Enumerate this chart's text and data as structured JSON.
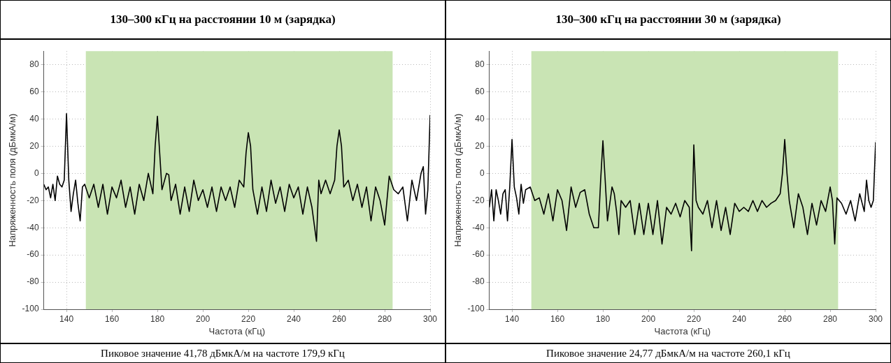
{
  "chart_data": [
    {
      "type": "line",
      "title": "130–300 кГц на расстоянии 10 м (зарядка)",
      "xlabel": "Частота (кГц)",
      "ylabel": "Напряженность поля (дБмкА/м)",
      "annotations": [
        "Пиковое значение 41,78 дБмкА/м на частоте 179,9 кГц"
      ],
      "xlim": [
        130,
        300
      ],
      "xticks": [
        140,
        160,
        180,
        200,
        220,
        240,
        260,
        280,
        300
      ],
      "ylim": [
        -100,
        90
      ],
      "yticks": [
        -100,
        -80,
        -60,
        -40,
        -20,
        0,
        20,
        40,
        60,
        80
      ],
      "grid": true,
      "legend": false,
      "bands": [
        {
          "axis": "x",
          "from": 148.5,
          "to": 283.5,
          "color": "#c9e4b4"
        }
      ],
      "series": [
        {
          "color": "#000000",
          "x": [
            130,
            131,
            132,
            133,
            134,
            135,
            136,
            137,
            138,
            139,
            140,
            141,
            142,
            143,
            144,
            145,
            146,
            147,
            148,
            150,
            152,
            154,
            156,
            158,
            160,
            162,
            164,
            166,
            168,
            170,
            172,
            174,
            176,
            178,
            179,
            180,
            181,
            182,
            184,
            185,
            186,
            188,
            190,
            192,
            194,
            196,
            198,
            200,
            202,
            204,
            206,
            208,
            210,
            212,
            214,
            216,
            218,
            219,
            220,
            221,
            222,
            224,
            226,
            228,
            230,
            232,
            234,
            236,
            238,
            240,
            242,
            244,
            246,
            248,
            250,
            251,
            252,
            254,
            256,
            258,
            259,
            260,
            261,
            262,
            264,
            266,
            268,
            270,
            272,
            274,
            276,
            278,
            280,
            282,
            284,
            286,
            288,
            290,
            292,
            294,
            296,
            297,
            298,
            299,
            300
          ],
          "values": [
            -8,
            -12,
            -10,
            -18,
            -8,
            -20,
            -2,
            -8,
            -10,
            -5,
            44,
            -5,
            -28,
            -15,
            -5,
            -22,
            -35,
            -10,
            -8,
            -18,
            -8,
            -25,
            -8,
            -30,
            -10,
            -18,
            -5,
            -25,
            -10,
            -30,
            -8,
            -20,
            0,
            -15,
            20,
            42,
            15,
            -12,
            0,
            -1,
            -20,
            -8,
            -30,
            -10,
            -28,
            -5,
            -20,
            -12,
            -25,
            -10,
            -28,
            -10,
            -20,
            -10,
            -25,
            -5,
            -10,
            15,
            30,
            20,
            -12,
            -30,
            -10,
            -28,
            -5,
            -22,
            -10,
            -28,
            -8,
            -18,
            -10,
            -30,
            -10,
            -25,
            -50,
            -5,
            -15,
            -5,
            -15,
            -5,
            20,
            32,
            20,
            -10,
            -5,
            -20,
            -8,
            -25,
            -10,
            -35,
            -10,
            -20,
            -38,
            -2,
            -12,
            -15,
            -10,
            -35,
            -5,
            -20,
            0,
            5,
            -30,
            -12,
            43
          ]
        }
      ]
    },
    {
      "type": "line",
      "title": "130–300 кГц на расстоянии 30 м (зарядка)",
      "xlabel": "Частота (кГц)",
      "ylabel": "Напряженность поля (дБмкА/м)",
      "annotations": [
        "Пиковое значение 24,77 дБмкА/м на частоте 260,1 кГц"
      ],
      "xlim": [
        130,
        300
      ],
      "xticks": [
        140,
        160,
        180,
        200,
        220,
        240,
        260,
        280,
        300
      ],
      "ylim": [
        -100,
        90
      ],
      "yticks": [
        -100,
        -80,
        -60,
        -40,
        -20,
        0,
        20,
        40,
        60,
        80
      ],
      "grid": true,
      "legend": false,
      "bands": [
        {
          "axis": "x",
          "from": 148.5,
          "to": 283.5,
          "color": "#c9e4b4"
        }
      ],
      "series": [
        {
          "color": "#000000",
          "x": [
            130,
            131,
            132,
            133,
            134,
            135,
            136,
            137,
            138,
            139,
            140,
            141,
            142,
            143,
            144,
            145,
            146,
            148,
            150,
            152,
            154,
            156,
            158,
            160,
            162,
            164,
            166,
            168,
            170,
            172,
            174,
            176,
            178,
            179,
            180,
            181,
            182,
            184,
            185,
            186,
            187,
            188,
            190,
            192,
            194,
            196,
            198,
            200,
            202,
            204,
            206,
            208,
            210,
            212,
            214,
            216,
            218,
            219,
            220,
            221,
            222,
            224,
            226,
            228,
            230,
            232,
            234,
            236,
            238,
            240,
            242,
            244,
            246,
            248,
            250,
            252,
            254,
            256,
            258,
            259,
            260,
            261,
            262,
            264,
            266,
            268,
            270,
            272,
            274,
            276,
            278,
            280,
            281,
            282,
            283,
            285,
            287,
            289,
            291,
            293,
            295,
            296,
            297,
            298,
            299,
            300
          ],
          "values": [
            -25,
            -12,
            -35,
            -12,
            -20,
            -30,
            -15,
            -12,
            -35,
            -10,
            25,
            -10,
            -18,
            -30,
            -8,
            -22,
            -12,
            -10,
            -20,
            -18,
            -30,
            -15,
            -35,
            -12,
            -20,
            -42,
            -10,
            -25,
            -14,
            -12,
            -30,
            -40,
            -40,
            -5,
            24,
            -5,
            -35,
            -10,
            -15,
            -28,
            -45,
            -20,
            -25,
            -20,
            -45,
            -22,
            -45,
            -22,
            -45,
            -20,
            -52,
            -25,
            -30,
            -22,
            -32,
            -20,
            -25,
            -57,
            21,
            -20,
            -25,
            -30,
            -20,
            -40,
            -20,
            -42,
            -25,
            -45,
            -22,
            -28,
            -25,
            -28,
            -20,
            -28,
            -20,
            -25,
            -22,
            -20,
            -15,
            0,
            25,
            0,
            -20,
            -40,
            -15,
            -25,
            -45,
            -22,
            -38,
            -20,
            -28,
            -10,
            -20,
            -52,
            -18,
            -22,
            -30,
            -20,
            -35,
            -15,
            -28,
            -5,
            -20,
            -25,
            -20,
            23
          ]
        }
      ]
    }
  ]
}
